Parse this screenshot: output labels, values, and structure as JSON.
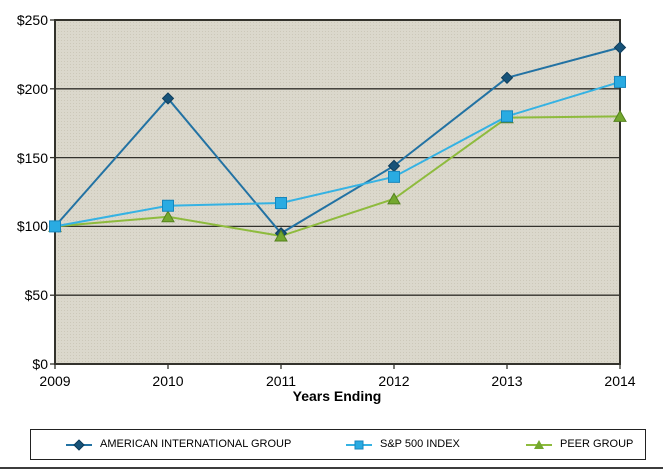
{
  "chart_data": {
    "type": "line",
    "title": "",
    "xlabel": "Years Ending",
    "ylabel": "",
    "categories": [
      "2009",
      "2010",
      "2011",
      "2012",
      "2013",
      "2014"
    ],
    "series": [
      {
        "name": "AMERICAN INTERNATIONAL GROUP",
        "marker": "diamond",
        "line_color": "#2272A3",
        "marker_fill": "#175379",
        "marker_stroke": "#0F3E5C",
        "values": [
          100,
          193,
          95,
          144,
          208,
          230
        ]
      },
      {
        "name": "S&P 500 INDEX",
        "marker": "square",
        "line_color": "#35B2E3",
        "marker_fill": "#29ABE2",
        "marker_stroke": "#1786BC",
        "values": [
          100,
          115,
          117,
          136,
          180,
          205
        ]
      },
      {
        "name": "PEER GROUP",
        "marker": "triangle",
        "line_color": "#8EBB3D",
        "marker_fill": "#74A82F",
        "marker_stroke": "#55821E",
        "values": [
          100,
          107,
          93,
          120,
          179,
          180
        ]
      }
    ],
    "ylim": [
      0,
      250
    ],
    "y_tick_values": [
      250,
      200,
      150,
      100,
      50,
      0
    ],
    "y_tick_labels": [
      "$250",
      "$200",
      "$150",
      "$100",
      "$50",
      "$0"
    ],
    "grid": "horizontal",
    "legend_position": "bottom",
    "plot_bg": "#DBD8CC",
    "plot_bg_dot": "#CCC8B9",
    "axis_color": "#33322C"
  }
}
